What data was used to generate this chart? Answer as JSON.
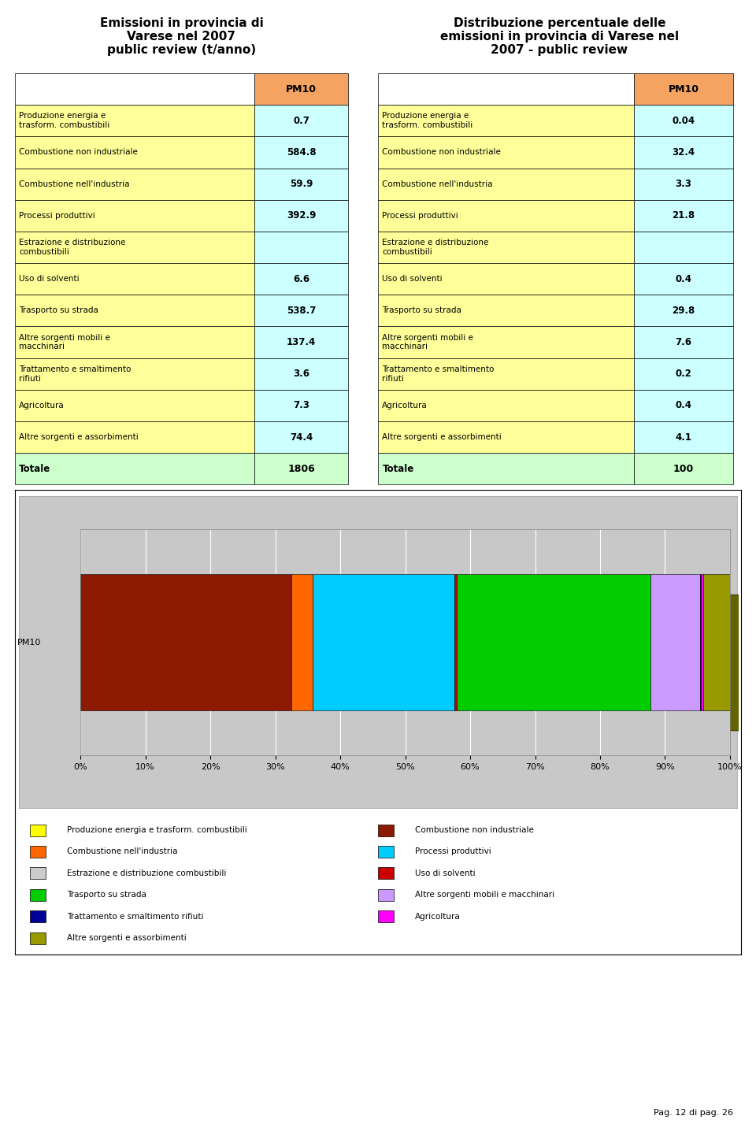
{
  "title_left": "Emissioni in provincia di\nVarese nel 2007\npublic review (t/anno)",
  "title_right": "Distribuzione percentuale delle\nemissioni in provincia di Varese nel\n2007 - public review",
  "col_header": "PM10",
  "rows": [
    {
      "label": "Produzione energia e\ntrasform. combustibili",
      "val_abs": "0.7",
      "val_pct": "0.04"
    },
    {
      "label": "Combustione non industriale",
      "val_abs": "584.8",
      "val_pct": "32.4"
    },
    {
      "label": "Combustione nell'industria",
      "val_abs": "59.9",
      "val_pct": "3.3"
    },
    {
      "label": "Processi produttivi",
      "val_abs": "392.9",
      "val_pct": "21.8"
    },
    {
      "label": "Estrazione e distribuzione\ncombustibili",
      "val_abs": "",
      "val_pct": ""
    },
    {
      "label": "Uso di solventi",
      "val_abs": "6.6",
      "val_pct": "0.4"
    },
    {
      "label": "Trasporto su strada",
      "val_abs": "538.7",
      "val_pct": "29.8"
    },
    {
      "label": "Altre sorgenti mobili e\nmacchinari",
      "val_abs": "137.4",
      "val_pct": "7.6"
    },
    {
      "label": "Trattamento e smaltimento\nrifiuti",
      "val_abs": "3.6",
      "val_pct": "0.2"
    },
    {
      "label": "Agricoltura",
      "val_abs": "7.3",
      "val_pct": "0.4"
    },
    {
      "label": "Altre sorgenti e assorbimenti",
      "val_abs": "74.4",
      "val_pct": "4.1"
    }
  ],
  "totale_abs": "1806",
  "totale_pct": "100",
  "bar_data": [
    {
      "label": "Produzione energia e trasform. combustibili",
      "pct": 0.04,
      "color": "#FFFF00"
    },
    {
      "label": "Combustione non industriale",
      "pct": 32.4,
      "color": "#8B1A00"
    },
    {
      "label": "Combustione nell'industria",
      "pct": 3.3,
      "color": "#FF6600"
    },
    {
      "label": "Processi produttivi",
      "pct": 21.8,
      "color": "#00CCFF"
    },
    {
      "label": "Estrazione e distribuzione combustibili",
      "pct": 0.0,
      "color": "#CCCCCC"
    },
    {
      "label": "Uso di solventi",
      "pct": 0.4,
      "color": "#CC0000"
    },
    {
      "label": "Trasporto su strada",
      "pct": 29.8,
      "color": "#00CC00"
    },
    {
      "label": "Altre sorgenti mobili e macchinari",
      "pct": 7.6,
      "color": "#CC99FF"
    },
    {
      "label": "Trattamento e smaltimento rifiuti",
      "pct": 0.2,
      "color": "#000099"
    },
    {
      "label": "Agricoltura",
      "pct": 0.4,
      "color": "#FF00FF"
    },
    {
      "label": "Altre sorgenti e assorbimenti",
      "pct": 4.1,
      "color": "#999900"
    }
  ],
  "legend_left": [
    {
      "label": "Produzione energia e trasform. combustibili",
      "color": "#FFFF00"
    },
    {
      "label": "Combustione nell'industria",
      "color": "#FF6600"
    },
    {
      "label": "Estrazione e distribuzione combustibili",
      "color": "#CCCCCC"
    },
    {
      "label": "Trasporto su strada",
      "color": "#00CC00"
    },
    {
      "label": "Trattamento e smaltimento rifiuti",
      "color": "#000099"
    },
    {
      "label": "Altre sorgenti e assorbimenti",
      "color": "#999900"
    }
  ],
  "legend_right": [
    {
      "label": "Combustione non industriale",
      "color": "#8B1A00"
    },
    {
      "label": "Processi produttivi",
      "color": "#00CCFF"
    },
    {
      "label": "Uso di solventi",
      "color": "#CC0000"
    },
    {
      "label": "Altre sorgenti mobili e macchinari",
      "color": "#CC99FF"
    },
    {
      "label": "Agricoltura",
      "color": "#FF00FF"
    }
  ],
  "table_header_color": "#F4A460",
  "table_row_yellow": "#FFFF99",
  "table_row_blue": "#CCFFFF",
  "table_total_color": "#CCFFCC",
  "chart_bg": "#C8C8C8",
  "page_label": "Pag. 12 di pag. 26"
}
